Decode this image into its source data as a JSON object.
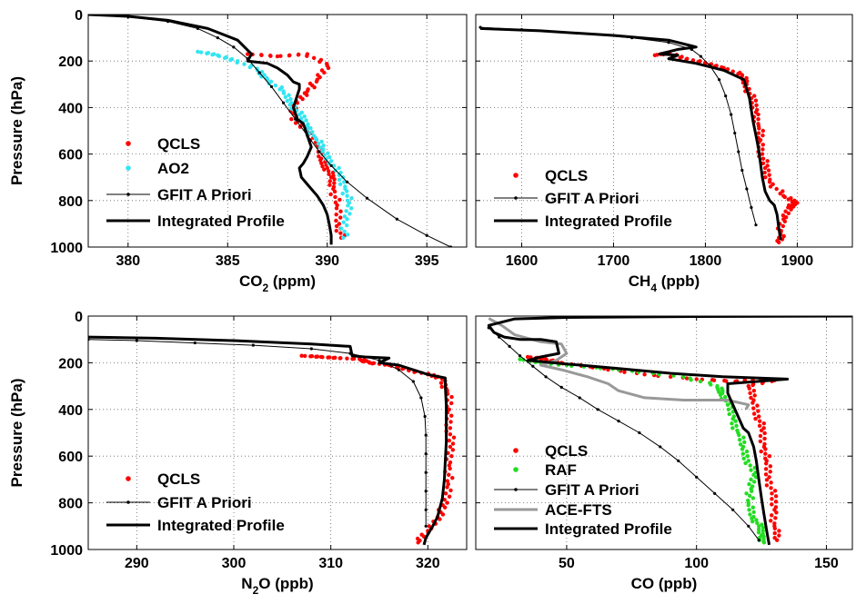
{
  "colors": {
    "qcls": "#ff0000",
    "ao2": "#33e5f2",
    "raf": "#22dd22",
    "apriori": "#000000",
    "ace": "#999999",
    "integrated": "#000000"
  },
  "chart_data": [
    {
      "type": "scatter",
      "xlabel": "CO",
      "xlabel_sub": "2",
      "xlabel_unit": " (ppm)",
      "ylabel": "Pressure (hPa)",
      "xlim": [
        378,
        397
      ],
      "ylim": [
        0,
        1000
      ],
      "y_reversed": true,
      "xticks": [
        380,
        385,
        390,
        395
      ],
      "yticks": [
        0,
        200,
        400,
        600,
        800,
        1000
      ],
      "grid": true,
      "legend_position": "bottom-left",
      "series": [
        {
          "name": "QCLS",
          "style": "points",
          "color_key": "qcls",
          "x": [
            386.0,
            387.5,
            389.0,
            390.0,
            389.5,
            389.0,
            388.5,
            388.2,
            389.0,
            389.5,
            389.7,
            390.0,
            390.2,
            390.3,
            390.5,
            390.6,
            390.7
          ],
          "y": [
            170,
            180,
            170,
            220,
            280,
            330,
            380,
            450,
            500,
            560,
            620,
            660,
            700,
            750,
            820,
            900,
            960
          ]
        },
        {
          "name": "AO2",
          "style": "points",
          "color_key": "ao2",
          "x": [
            383.5,
            384.5,
            385.5,
            386.5,
            387.0,
            387.8,
            388.2,
            388.6,
            389.0,
            389.4,
            389.8,
            390.2,
            390.6,
            390.9,
            391.1,
            391.0,
            390.8
          ],
          "y": [
            160,
            175,
            200,
            240,
            280,
            330,
            380,
            430,
            480,
            530,
            580,
            630,
            690,
            750,
            810,
            880,
            960
          ]
        },
        {
          "name": "GFIT A Priori",
          "style": "line-markers",
          "color_key": "apriori",
          "x": [
            378,
            380,
            382,
            383.5,
            384.5,
            385.3,
            386.0,
            386.6,
            387.2,
            387.8,
            388.4,
            389.0,
            389.6,
            390.2,
            391.0,
            392.0,
            393.5,
            395.0,
            396.2
          ],
          "y": [
            0,
            10,
            30,
            60,
            100,
            140,
            190,
            250,
            310,
            380,
            450,
            520,
            590,
            650,
            720,
            790,
            880,
            950,
            1000
          ]
        },
        {
          "name": "Integrated Profile",
          "style": "thick-line",
          "color_key": "integrated",
          "x": [
            378,
            380,
            382,
            384,
            385.5,
            386.2,
            386.0,
            387.0,
            387.5,
            388.0,
            388.3,
            388.6,
            388.6,
            388.3,
            388.5,
            388.8,
            389.0,
            389.2,
            389.0,
            388.8,
            388.6,
            388.7,
            389.0,
            389.5,
            389.8,
            390.0,
            390.1,
            390.2,
            390.2
          ],
          "y": [
            0,
            8,
            25,
            60,
            110,
            170,
            200,
            210,
            230,
            260,
            290,
            300,
            320,
            400,
            450,
            470,
            520,
            570,
            610,
            640,
            660,
            700,
            730,
            780,
            820,
            860,
            900,
            950,
            990
          ]
        }
      ]
    },
    {
      "type": "scatter",
      "xlabel": "CH",
      "xlabel_sub": "4",
      "xlabel_unit": " (ppb)",
      "ylabel": "",
      "xlim": [
        1550,
        1960
      ],
      "ylim": [
        0,
        1000
      ],
      "y_reversed": true,
      "xticks": [
        1600,
        1700,
        1800,
        1900
      ],
      "yticks": [
        0,
        200,
        400,
        600,
        800,
        1000
      ],
      "grid": true,
      "legend_position": "bottom-left",
      "series": [
        {
          "name": "QCLS",
          "style": "points",
          "color_key": "qcls",
          "x": [
            1745,
            1760,
            1780,
            1800,
            1820,
            1840,
            1845,
            1850,
            1855,
            1858,
            1860,
            1862,
            1865,
            1870,
            1885,
            1900,
            1890,
            1885,
            1882,
            1880
          ],
          "y": [
            175,
            165,
            190,
            210,
            230,
            260,
            300,
            360,
            420,
            480,
            540,
            600,
            660,
            720,
            780,
            810,
            830,
            880,
            940,
            980
          ]
        },
        {
          "name": "GFIT A Priori",
          "style": "line-markers",
          "color_key": "apriori",
          "x": [
            1555,
            1600,
            1660,
            1720,
            1760,
            1785,
            1795,
            1805,
            1815,
            1822,
            1828,
            1832,
            1836,
            1840,
            1845,
            1850,
            1855
          ],
          "y": [
            55,
            65,
            80,
            100,
            120,
            150,
            180,
            220,
            280,
            350,
            430,
            510,
            590,
            670,
            750,
            830,
            905
          ]
        },
        {
          "name": "Integrated Profile",
          "style": "thick-line",
          "color_key": "integrated",
          "x": [
            1555,
            1620,
            1700,
            1760,
            1790,
            1770,
            1750,
            1770,
            1760,
            1790,
            1820,
            1842,
            1845,
            1848,
            1850,
            1852,
            1855,
            1858,
            1860,
            1862,
            1865,
            1870,
            1875,
            1878,
            1880,
            1882
          ],
          "y": [
            60,
            70,
            90,
            110,
            140,
            150,
            170,
            175,
            190,
            210,
            240,
            280,
            320,
            360,
            410,
            460,
            520,
            580,
            640,
            700,
            760,
            800,
            820,
            860,
            920,
            970
          ]
        }
      ]
    },
    {
      "type": "scatter",
      "xlabel": "N",
      "xlabel_sub": "2",
      "xlabel_unit": "O (ppb)",
      "ylabel": "Pressure (hPa)",
      "xlim": [
        285,
        324
      ],
      "ylim": [
        0,
        1000
      ],
      "y_reversed": true,
      "xticks": [
        290,
        300,
        310,
        320
      ],
      "yticks": [
        0,
        200,
        400,
        600,
        800,
        1000
      ],
      "grid": true,
      "legend_position": "bottom-left",
      "series": [
        {
          "name": "QCLS",
          "style": "points",
          "color_key": "qcls",
          "x": [
            307,
            309,
            311,
            313,
            314,
            316,
            318,
            320,
            321.5,
            322,
            322.2,
            322.3,
            322.3,
            322.2,
            322.1,
            322.0,
            321.0,
            320.0,
            319.0
          ],
          "y": [
            170,
            175,
            180,
            185,
            200,
            210,
            230,
            250,
            270,
            320,
            400,
            480,
            560,
            640,
            720,
            800,
            860,
            920,
            970
          ]
        },
        {
          "name": "GFIT A Priori",
          "style": "line-markers",
          "color_key": "apriori",
          "x": [
            285,
            290,
            296,
            302,
            308,
            312,
            315,
            317,
            318.5,
            319.3,
            319.7,
            319.8,
            319.8,
            319.8,
            319.8,
            319.8,
            319.8
          ],
          "y": [
            100,
            105,
            115,
            125,
            140,
            160,
            190,
            230,
            280,
            350,
            430,
            510,
            590,
            670,
            750,
            830,
            900
          ]
        },
        {
          "name": "Integrated Profile",
          "style": "thick-line",
          "color_key": "integrated",
          "x": [
            285,
            292,
            300,
            308,
            312,
            312.2,
            313.5,
            316,
            315,
            317,
            320,
            321.8,
            321.8,
            321.9,
            321.9,
            321.9,
            321.8,
            321.7,
            321.5,
            321.0,
            320.5,
            319.8,
            319.6
          ],
          "y": [
            90,
            95,
            105,
            120,
            130,
            170,
            175,
            180,
            200,
            210,
            250,
            265,
            300,
            380,
            460,
            540,
            620,
            700,
            780,
            860,
            900,
            950,
            980
          ]
        }
      ]
    },
    {
      "type": "scatter",
      "xlabel": "CO (ppb)",
      "xlabel_sub": "",
      "xlabel_unit": "",
      "ylabel": "",
      "xlim": [
        15,
        160
      ],
      "ylim": [
        0,
        1000
      ],
      "y_reversed": true,
      "xticks": [
        50,
        100,
        150
      ],
      "yticks": [
        0,
        200,
        400,
        600,
        800,
        1000
      ],
      "grid": true,
      "legend_position": "bottom-left",
      "series": [
        {
          "name": "QCLS",
          "style": "points",
          "color_key": "qcls",
          "x": [
            35,
            42,
            48,
            60,
            80,
            100,
            115,
            125,
            130,
            120,
            122,
            124,
            125,
            126,
            127,
            128,
            129,
            130,
            130,
            131
          ],
          "y": [
            175,
            185,
            200,
            220,
            250,
            270,
            280,
            270,
            275,
            300,
            360,
            430,
            490,
            560,
            620,
            690,
            760,
            830,
            900,
            960
          ]
        },
        {
          "name": "RAF",
          "style": "points",
          "color_key": "raf",
          "x": [
            32,
            40,
            50,
            70,
            95,
            108,
            110,
            112,
            114,
            116,
            118,
            120,
            122,
            121,
            120,
            122,
            124,
            125,
            126
          ],
          "y": [
            185,
            200,
            210,
            230,
            260,
            300,
            330,
            380,
            440,
            500,
            560,
            620,
            680,
            740,
            800,
            860,
            900,
            940,
            970
          ]
        },
        {
          "name": "GFIT A Priori",
          "style": "line-markers",
          "color_key": "apriori",
          "x": [
            20,
            24,
            28,
            32,
            37,
            42,
            48,
            55,
            62,
            70,
            78,
            86,
            93,
            100,
            107,
            114,
            120,
            124
          ],
          "y": [
            50,
            90,
            130,
            170,
            215,
            260,
            305,
            350,
            400,
            450,
            500,
            560,
            620,
            690,
            760,
            830,
            900,
            960
          ]
        },
        {
          "name": "ACE-FTS",
          "style": "gray-line",
          "color_key": "ace",
          "x": [
            20,
            25,
            30,
            40,
            48,
            50,
            46,
            40,
            48,
            58,
            66,
            70,
            80,
            95,
            112,
            120,
            119
          ],
          "y": [
            10,
            40,
            80,
            110,
            120,
            160,
            190,
            210,
            230,
            260,
            290,
            320,
            350,
            360,
            360,
            380,
            400
          ]
        },
        {
          "name": "Integrated Profile",
          "style": "thick-line",
          "color_key": "integrated",
          "x": [
            160,
            100,
            50,
            30,
            20,
            22,
            26,
            32,
            40,
            46,
            47,
            40,
            35,
            50,
            70,
            90,
            110,
            135,
            112,
            112,
            114,
            116,
            118,
            120,
            122,
            123,
            124,
            125,
            126,
            127,
            128
          ],
          "y": [
            0,
            2,
            6,
            12,
            40,
            70,
            90,
            100,
            100,
            110,
            160,
            175,
            190,
            205,
            225,
            245,
            260,
            270,
            290,
            330,
            380,
            430,
            480,
            500,
            560,
            620,
            700,
            780,
            850,
            920,
            980
          ]
        }
      ]
    }
  ]
}
